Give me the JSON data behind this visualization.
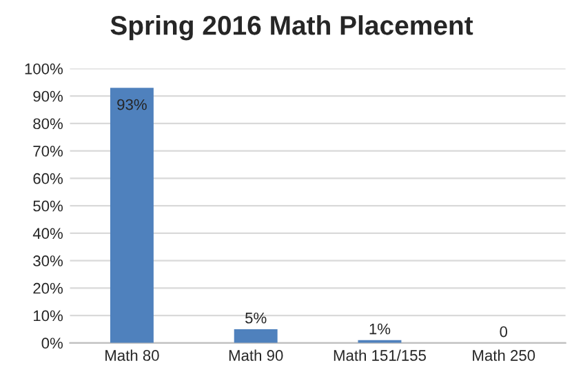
{
  "chart_data": {
    "type": "bar",
    "title": "Spring 2016 Math Placement",
    "categories": [
      "Math 80",
      "Math 90",
      "Math 151/155",
      "Math 250"
    ],
    "values": [
      93,
      5,
      1,
      0
    ],
    "value_labels": [
      "93%",
      "5%",
      "1%",
      "0"
    ],
    "color": "#4f81bd",
    "ylim": [
      0,
      100
    ],
    "yticks": [
      {
        "value": 0,
        "label": "0%"
      },
      {
        "value": 10,
        "label": "10%"
      },
      {
        "value": 20,
        "label": "20%"
      },
      {
        "value": 30,
        "label": "30%"
      },
      {
        "value": 40,
        "label": "40%"
      },
      {
        "value": 50,
        "label": "50%"
      },
      {
        "value": 60,
        "label": "60%"
      },
      {
        "value": 70,
        "label": "70%"
      },
      {
        "value": 80,
        "label": "80%"
      },
      {
        "value": 90,
        "label": "90%"
      },
      {
        "value": 100,
        "label": "100%"
      }
    ],
    "grid": "y",
    "legend": false
  }
}
